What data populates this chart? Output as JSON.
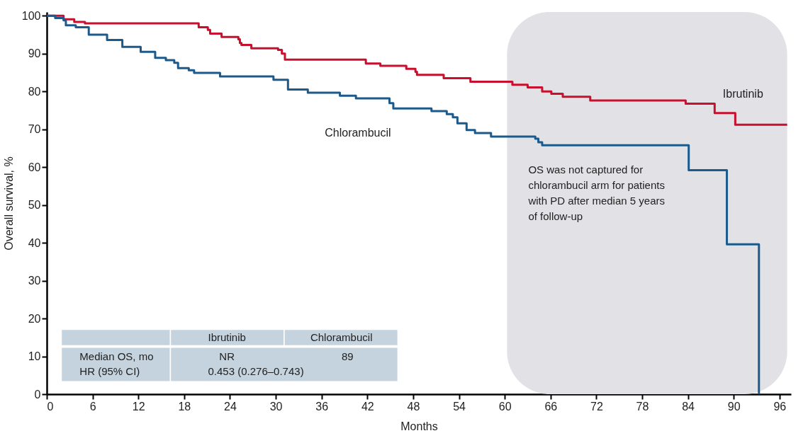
{
  "chart_data": {
    "type": "step",
    "xlabel": "Months",
    "ylabel": "Overall survival, %",
    "xlim": [
      0,
      97.5
    ],
    "ylim": [
      0,
      101
    ],
    "xticks": [
      0,
      6,
      12,
      18,
      24,
      30,
      36,
      42,
      48,
      54,
      60,
      66,
      72,
      78,
      84,
      90,
      96
    ],
    "yticks": [
      0,
      10,
      20,
      30,
      40,
      50,
      60,
      70,
      80,
      90,
      100
    ],
    "grid": false,
    "legend": false,
    "marker": "none",
    "line_style": "solid",
    "series": [
      {
        "name": "Ibrutinib",
        "color": "#c8102e",
        "x": [
          0,
          2.2,
          3.6,
          5,
          19.9,
          21.1,
          21.4,
          22.9,
          25.1,
          25.3,
          25.5,
          26.8,
          30.3,
          30.8,
          31.2,
          41.8,
          43.7,
          47.1,
          48.3,
          48.5,
          52,
          55.5,
          61,
          63,
          64.9,
          66.1,
          67.6,
          71.2,
          83.7,
          87.5,
          90.2,
          97
        ],
        "values": [
          100,
          99.1,
          98.4,
          98,
          97,
          96.3,
          95.3,
          94.4,
          93.8,
          92.8,
          92.3,
          91.4,
          91,
          90,
          88.4,
          87.4,
          86.8,
          86,
          85.2,
          84.4,
          83.5,
          82.6,
          81.8,
          81.1,
          80,
          79.4,
          78.6,
          77.6,
          76.8,
          74.3,
          71.2,
          71.2
        ]
      },
      {
        "name": "Chlorambucil",
        "color": "#1d5a8c",
        "x": [
          0,
          1.1,
          2.2,
          2.5,
          3.8,
          5.5,
          7.9,
          9.9,
          12.3,
          14.2,
          15.6,
          16.7,
          17.2,
          18.6,
          19.3,
          22.7,
          29.7,
          31.6,
          34.2,
          38.4,
          40.5,
          44.9,
          45.4,
          50.4,
          52.4,
          53.2,
          53.8,
          55,
          56.1,
          58.2,
          64,
          64.4,
          64.9,
          84.1,
          89.1,
          93.3
        ],
        "values": [
          100,
          99.4,
          98.8,
          97.5,
          97,
          95,
          93.6,
          91.8,
          90.5,
          88.9,
          88.3,
          87.6,
          86.2,
          85.6,
          84.9,
          84,
          83.1,
          80.5,
          79.7,
          78.9,
          78.2,
          76.9,
          75.5,
          74.8,
          74,
          73.2,
          71.6,
          69.8,
          69,
          68.1,
          67.5,
          66.6,
          65.8,
          59.2,
          39.6,
          0
        ]
      }
    ],
    "bands": [
      {
        "axis": "x",
        "from": 60.3,
        "to": 97,
        "color": "#e1e1e6",
        "label": "OS was not captured for chlorambucil arm for patients with PD after median 5 years of follow-up"
      }
    ],
    "annotations": [
      "Median OS, mo",
      "NR",
      "89",
      "HR (95% CI)",
      "0.453 (0.276–0.743)"
    ]
  }
}
